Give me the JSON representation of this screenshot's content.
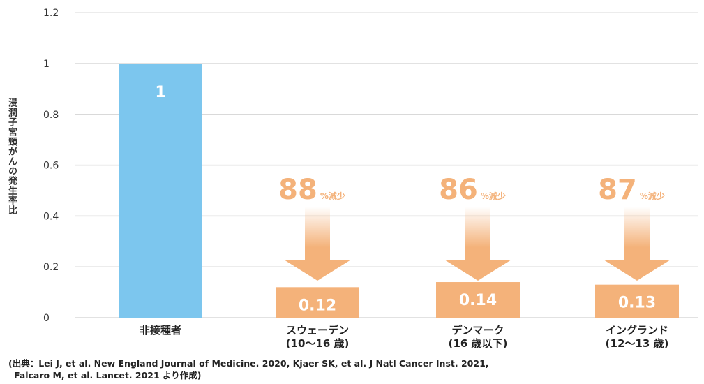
{
  "chart_data": {
    "type": "bar",
    "ylabel": "浸潤子宮頸がんの発生率比",
    "ylim": [
      0,
      1.2
    ],
    "yticks": [
      "0",
      "0.2",
      "0.4",
      "0.6",
      "0.8",
      "1",
      "1.2"
    ],
    "categories": [
      {
        "line1": "非接種者",
        "line2": ""
      },
      {
        "line1": "スウェーデン",
        "line2": "(10〜16 歳)"
      },
      {
        "line1": "デンマーク",
        "line2": "(16 歳以下)"
      },
      {
        "line1": "イングランド",
        "line2": "(12〜13 歳)"
      }
    ],
    "values": [
      1,
      0.12,
      0.14,
      0.13
    ],
    "value_labels": [
      "1",
      "0.12",
      "0.14",
      "0.13"
    ],
    "reductions": [
      null,
      {
        "pct": "88",
        "suffix": "%減少"
      },
      {
        "pct": "86",
        "suffix": "%減少"
      },
      {
        "pct": "87",
        "suffix": "%減少"
      }
    ],
    "colors": {
      "reference": "#7cc6ee",
      "vaccinated": "#f4b27a",
      "arrow": "#f4b27a",
      "grid": "#d9d9d9"
    }
  },
  "source": {
    "line1": "(出典：Lei J, et al. New England Journal of Medicine. 2020, Kjaer SK, et al. J Natl Cancer Inst. 2021,",
    "line2": "Falcaro M, et al. Lancet. 2021 より作成)"
  }
}
